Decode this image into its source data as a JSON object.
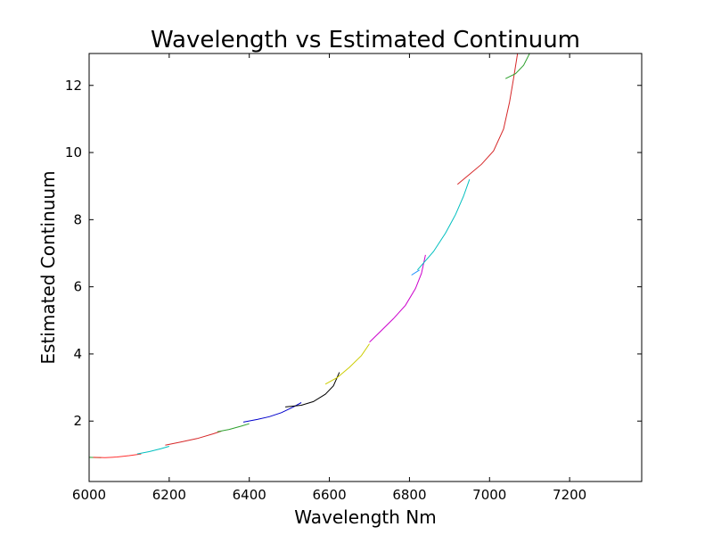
{
  "chart_data": {
    "type": "line",
    "title": "Wavelength vs Estimated Continuum",
    "xlabel": "Wavelength Nm",
    "ylabel": "Estimated Continuum",
    "xlim": [
      6000,
      7380
    ],
    "ylim": [
      0.2,
      12.95
    ],
    "xticks": [
      6000,
      6200,
      6400,
      6600,
      6800,
      7000,
      7200
    ],
    "yticks": [
      2,
      4,
      6,
      8,
      10,
      12
    ],
    "grid": false,
    "legend": "none",
    "series": [
      {
        "color": "#2ca02c",
        "points": [
          [
            6000,
            0.92
          ],
          [
            6015,
            0.915
          ],
          [
            6030,
            0.91
          ]
        ]
      },
      {
        "color": "#ff3030",
        "points": [
          [
            6010,
            0.92
          ],
          [
            6040,
            0.91
          ],
          [
            6070,
            0.93
          ],
          [
            6100,
            0.97
          ],
          [
            6130,
            1.02
          ]
        ]
      },
      {
        "color": "#00bfbf",
        "points": [
          [
            6120,
            1.02
          ],
          [
            6150,
            1.09
          ],
          [
            6180,
            1.18
          ],
          [
            6200,
            1.25
          ]
        ]
      },
      {
        "color": "#d62728",
        "points": [
          [
            6190,
            1.28
          ],
          [
            6230,
            1.38
          ],
          [
            6270,
            1.48
          ],
          [
            6310,
            1.62
          ],
          [
            6330,
            1.7
          ]
        ]
      },
      {
        "color": "#2ca02c",
        "points": [
          [
            6320,
            1.68
          ],
          [
            6350,
            1.75
          ],
          [
            6380,
            1.85
          ],
          [
            6400,
            1.92
          ]
        ]
      },
      {
        "color": "#0000cc",
        "points": [
          [
            6385,
            1.97
          ],
          [
            6420,
            2.05
          ],
          [
            6450,
            2.13
          ],
          [
            6480,
            2.25
          ],
          [
            6510,
            2.42
          ],
          [
            6530,
            2.55
          ]
        ]
      },
      {
        "color": "#000000",
        "points": [
          [
            6490,
            2.42
          ],
          [
            6530,
            2.47
          ],
          [
            6560,
            2.58
          ],
          [
            6590,
            2.8
          ],
          [
            6610,
            3.05
          ],
          [
            6625,
            3.45
          ]
        ]
      },
      {
        "color": "#cccc00",
        "points": [
          [
            6590,
            3.1
          ],
          [
            6620,
            3.3
          ],
          [
            6650,
            3.6
          ],
          [
            6680,
            3.95
          ],
          [
            6700,
            4.3
          ]
        ]
      },
      {
        "color": "#cc00cc",
        "points": [
          [
            6700,
            4.35
          ],
          [
            6730,
            4.7
          ],
          [
            6760,
            5.05
          ],
          [
            6790,
            5.45
          ],
          [
            6815,
            5.95
          ],
          [
            6830,
            6.4
          ],
          [
            6840,
            6.95
          ]
        ]
      },
      {
        "color": "#1e90ff",
        "points": [
          [
            6805,
            6.35
          ],
          [
            6825,
            6.5
          ]
        ]
      },
      {
        "color": "#00bfbf",
        "points": [
          [
            6820,
            6.5
          ],
          [
            6860,
            7.05
          ],
          [
            6890,
            7.6
          ],
          [
            6915,
            8.15
          ],
          [
            6935,
            8.7
          ],
          [
            6950,
            9.2
          ]
        ]
      },
      {
        "color": "#d62728",
        "points": [
          [
            6920,
            9.05
          ],
          [
            6950,
            9.35
          ],
          [
            6980,
            9.65
          ],
          [
            7010,
            10.05
          ],
          [
            7035,
            10.7
          ],
          [
            7050,
            11.5
          ],
          [
            7060,
            12.2
          ],
          [
            7070,
            12.95
          ]
        ]
      },
      {
        "color": "#2ca02c",
        "points": [
          [
            7040,
            12.2
          ],
          [
            7065,
            12.35
          ],
          [
            7085,
            12.6
          ],
          [
            7100,
            12.95
          ]
        ]
      }
    ]
  }
}
